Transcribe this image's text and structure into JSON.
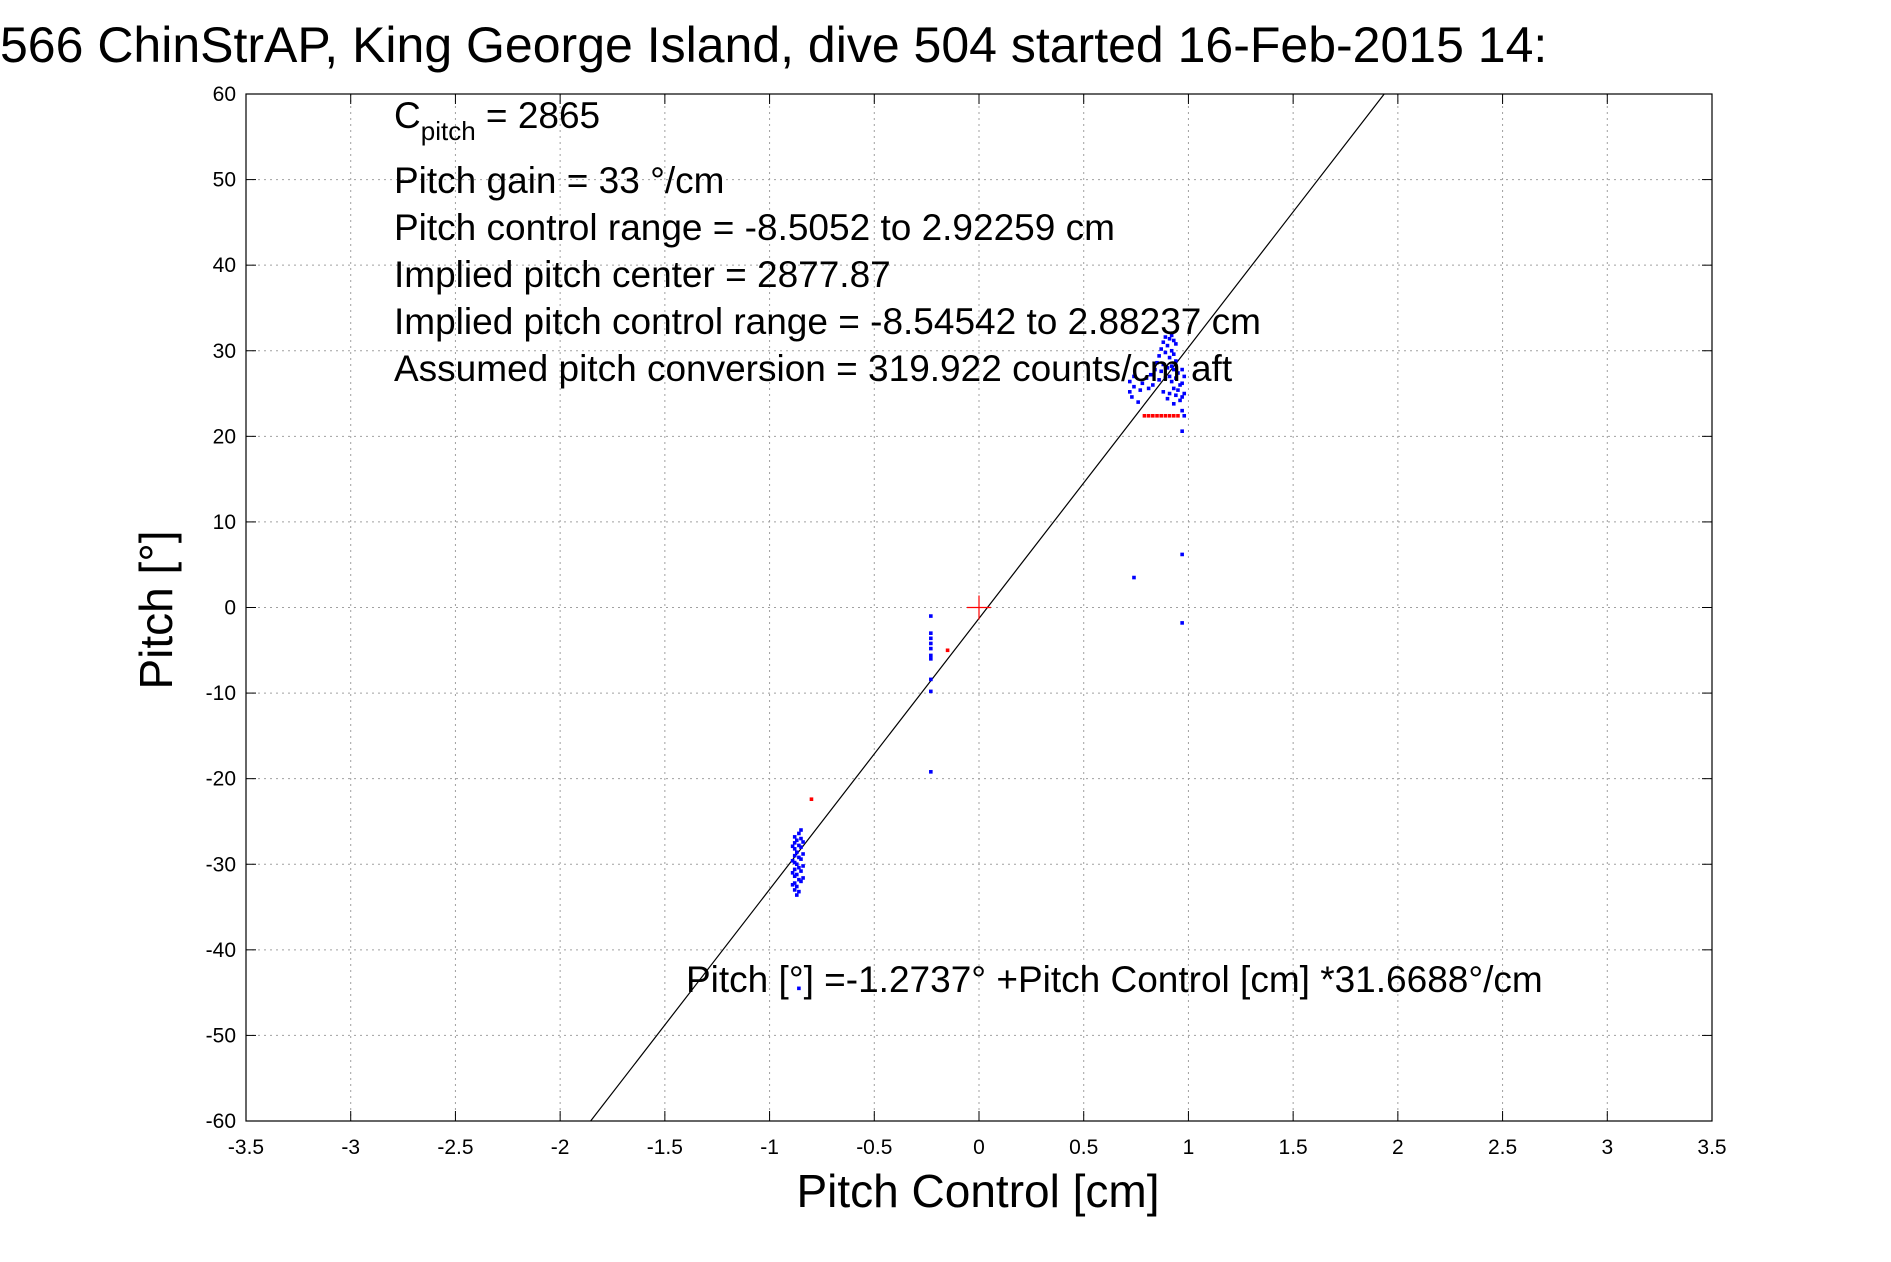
{
  "chart_data": {
    "type": "scatter",
    "title": "566 ChinStrAP, King George Island, dive 504 started 16-Feb-2015 14:",
    "xlabel": "Pitch Control [cm]",
    "ylabel": "Pitch [°]",
    "xlim": [
      -3.5,
      3.5
    ],
    "ylim": [
      -60,
      60
    ],
    "xticks": [
      -3.5,
      -3,
      -2.5,
      -2,
      -1.5,
      -1,
      -0.5,
      0,
      0.5,
      1,
      1.5,
      2,
      2.5,
      3,
      3.5
    ],
    "yticks": [
      60,
      50,
      40,
      30,
      20,
      10,
      0,
      -10,
      -20,
      -30,
      -40,
      -50,
      -60
    ],
    "grid": true,
    "annotations": {
      "c_pitch_base": "C",
      "c_pitch_sub": "pitch",
      "c_pitch_value": " = 2865",
      "lines": [
        "Pitch gain = 33 °/cm",
        "Pitch control range = -8.5052 to 2.92259 cm",
        "Implied pitch center = 2877.87",
        "Implied pitch control range = -8.54542 to 2.88237 cm",
        "Assumed pitch conversion = 319.922 counts/cm aft"
      ],
      "fit_equation": "Pitch [°] =-1.2737° +Pitch Control [cm] *31.6688°/cm"
    },
    "fit_line": {
      "intercept": -1.2737,
      "slope": 31.6688
    },
    "center_marker": {
      "x": 0,
      "y": 0
    },
    "colors": {
      "blue": "#0000ff",
      "red": "#ff0000",
      "line": "#000000",
      "marker": "#ff0000"
    },
    "series": [
      {
        "color": "blue",
        "points": [
          [
            -0.88,
            -26.8
          ],
          [
            -0.88,
            -27.5
          ],
          [
            -0.88,
            -28.2
          ],
          [
            -0.88,
            -29.0
          ],
          [
            -0.88,
            -29.8
          ],
          [
            -0.88,
            -30.6
          ],
          [
            -0.88,
            -31.4
          ],
          [
            -0.88,
            -32.2
          ],
          [
            -0.88,
            -33.0
          ],
          [
            -0.87,
            -27.2
          ],
          [
            -0.87,
            -28.6
          ],
          [
            -0.87,
            -30.0
          ],
          [
            -0.87,
            -31.2
          ],
          [
            -0.87,
            -32.6
          ],
          [
            -0.87,
            -33.6
          ],
          [
            -0.86,
            -26.4
          ],
          [
            -0.86,
            -27.8
          ],
          [
            -0.86,
            -29.2
          ],
          [
            -0.86,
            -30.4
          ],
          [
            -0.86,
            -31.8
          ],
          [
            -0.86,
            -33.2
          ],
          [
            -0.85,
            -26.0
          ],
          [
            -0.85,
            -27.0
          ],
          [
            -0.85,
            -28.0
          ],
          [
            -0.85,
            -29.4
          ],
          [
            -0.85,
            -30.8
          ],
          [
            -0.85,
            -32.0
          ],
          [
            -0.84,
            -27.4
          ],
          [
            -0.84,
            -28.8
          ],
          [
            -0.84,
            -30.2
          ],
          [
            -0.84,
            -31.6
          ],
          [
            -0.89,
            -27.9
          ],
          [
            -0.89,
            -29.6
          ],
          [
            -0.89,
            -31.0
          ],
          [
            -0.89,
            -32.4
          ],
          [
            -0.86,
            -44.5
          ],
          [
            -0.23,
            -1.0
          ],
          [
            -0.23,
            -3.0
          ],
          [
            -0.23,
            -3.6
          ],
          [
            -0.23,
            -4.2
          ],
          [
            -0.23,
            -4.8
          ],
          [
            -0.23,
            -5.6
          ],
          [
            -0.23,
            -6.0
          ],
          [
            -0.23,
            -8.4
          ],
          [
            -0.23,
            -9.8
          ],
          [
            -0.23,
            -19.2
          ],
          [
            0.74,
            3.5
          ],
          [
            0.97,
            6.2
          ],
          [
            0.97,
            -1.8
          ],
          [
            0.97,
            20.6
          ],
          [
            0.72,
            25.2
          ],
          [
            0.72,
            26.4
          ],
          [
            0.73,
            24.6
          ],
          [
            0.74,
            25.8
          ],
          [
            0.74,
            27.0
          ],
          [
            0.76,
            24.0
          ],
          [
            0.77,
            25.4
          ],
          [
            0.78,
            26.2
          ],
          [
            0.8,
            26.8
          ],
          [
            0.81,
            25.6
          ],
          [
            0.82,
            27.2
          ],
          [
            0.83,
            26.0
          ],
          [
            0.84,
            27.8
          ],
          [
            0.85,
            28.6
          ],
          [
            0.86,
            26.6
          ],
          [
            0.86,
            29.4
          ],
          [
            0.87,
            27.6
          ],
          [
            0.87,
            30.2
          ],
          [
            0.88,
            28.4
          ],
          [
            0.88,
            31.0
          ],
          [
            0.88,
            25.2
          ],
          [
            0.89,
            29.8
          ],
          [
            0.89,
            31.6
          ],
          [
            0.89,
            26.8
          ],
          [
            0.9,
            30.6
          ],
          [
            0.9,
            28.0
          ],
          [
            0.9,
            24.4
          ],
          [
            0.91,
            31.4
          ],
          [
            0.91,
            29.2
          ],
          [
            0.91,
            27.0
          ],
          [
            0.91,
            25.0
          ],
          [
            0.92,
            31.8
          ],
          [
            0.92,
            30.0
          ],
          [
            0.92,
            28.2
          ],
          [
            0.92,
            26.4
          ],
          [
            0.93,
            31.2
          ],
          [
            0.93,
            29.6
          ],
          [
            0.93,
            27.8
          ],
          [
            0.93,
            25.6
          ],
          [
            0.93,
            23.8
          ],
          [
            0.94,
            30.8
          ],
          [
            0.94,
            28.8
          ],
          [
            0.94,
            26.8
          ],
          [
            0.94,
            24.8
          ],
          [
            0.95,
            27.4
          ],
          [
            0.95,
            25.4
          ],
          [
            0.96,
            24.2
          ],
          [
            0.96,
            26.0
          ],
          [
            0.97,
            23.0
          ],
          [
            0.97,
            24.6
          ],
          [
            0.97,
            26.2
          ],
          [
            0.97,
            27.8
          ],
          [
            0.98,
            22.4
          ],
          [
            0.98,
            25.0
          ],
          [
            0.98,
            27.0
          ]
        ]
      },
      {
        "color": "red",
        "points": [
          [
            -0.8,
            -22.4
          ],
          [
            -0.15,
            -5.0
          ],
          [
            0.79,
            22.4
          ],
          [
            0.81,
            22.4
          ],
          [
            0.83,
            22.4
          ],
          [
            0.85,
            22.4
          ],
          [
            0.87,
            22.4
          ],
          [
            0.89,
            22.4
          ],
          [
            0.91,
            22.4
          ],
          [
            0.93,
            22.4
          ],
          [
            0.95,
            22.4
          ]
        ]
      }
    ]
  }
}
